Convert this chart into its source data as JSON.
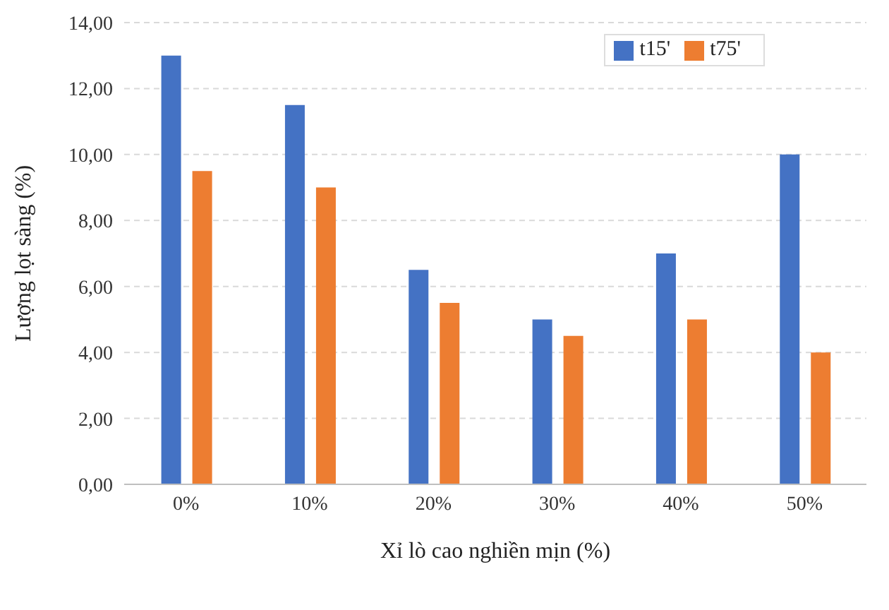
{
  "chart_data": {
    "type": "bar",
    "xlabel": "Xỉ lò cao nghiền mịn (%)",
    "ylabel": "Lượng lọt sàng (%)",
    "categories": [
      "0%",
      "10%",
      "20%",
      "30%",
      "40%",
      "50%"
    ],
    "series": [
      {
        "name": "t15'",
        "color": "#4472c4",
        "values": [
          13,
          11.5,
          6.5,
          5,
          7,
          10
        ]
      },
      {
        "name": "t75'",
        "color": "#ed7d31",
        "values": [
          9.5,
          9,
          5.5,
          4.5,
          5,
          4
        ]
      }
    ],
    "ylim": [
      0,
      14
    ],
    "yticks": [
      {
        "value": 0,
        "label": "0,00"
      },
      {
        "value": 2,
        "label": "2,00"
      },
      {
        "value": 4,
        "label": "4,00"
      },
      {
        "value": 6,
        "label": "6,00"
      },
      {
        "value": 8,
        "label": "8,00"
      },
      {
        "value": 10,
        "label": "10,00"
      },
      {
        "value": 12,
        "label": "12,00"
      },
      {
        "value": 14,
        "label": "14,00"
      }
    ],
    "grid": "y",
    "legend": "top right"
  }
}
